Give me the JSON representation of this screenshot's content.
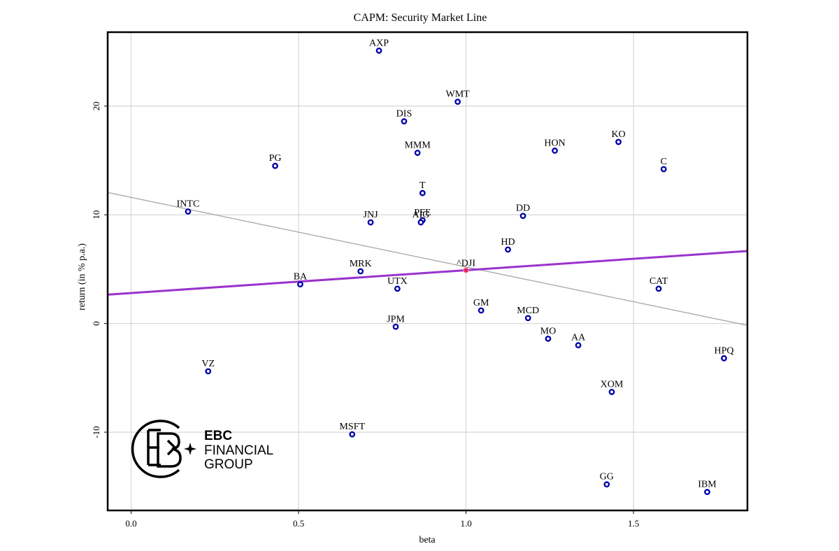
{
  "chart_data": {
    "type": "scatter",
    "title": "CAPM: Security Market Line",
    "xlabel": "beta",
    "ylabel": "return (in % p.a.)",
    "xlim": [
      -0.07,
      1.84
    ],
    "ylim": [
      -17.2,
      26.8
    ],
    "xticks": [
      0.0,
      0.5,
      1.0,
      1.5
    ],
    "xtick_labels": [
      "0.0",
      "0.5",
      "1.0",
      "1.5"
    ],
    "yticks": [
      -10,
      0,
      10,
      20
    ],
    "ytick_labels": [
      "-10",
      "0",
      "10",
      "20"
    ],
    "grid": true,
    "colors": {
      "points": "#0000aa",
      "market": "#e0245e",
      "sml": "#9933cc",
      "fit": "#aaaaaa",
      "grid": "#d9d9d9"
    },
    "security_market_line": {
      "intercept": 2.8,
      "slope": 2.1
    },
    "regression_line": {
      "intercept": 11.6,
      "slope": -6.4
    },
    "series": [
      {
        "points": [
          {
            "label": "AXP",
            "x": 0.74,
            "y": 25.1
          },
          {
            "label": "WMT",
            "x": 0.975,
            "y": 20.4
          },
          {
            "label": "DIS",
            "x": 0.815,
            "y": 18.6
          },
          {
            "label": "MMM",
            "x": 0.855,
            "y": 15.7
          },
          {
            "label": "HON",
            "x": 1.265,
            "y": 15.9
          },
          {
            "label": "KO",
            "x": 1.455,
            "y": 16.7
          },
          {
            "label": "PG",
            "x": 0.43,
            "y": 14.5
          },
          {
            "label": "C",
            "x": 1.59,
            "y": 14.2
          },
          {
            "label": "T",
            "x": 0.87,
            "y": 12.0
          },
          {
            "label": "INTC",
            "x": 0.17,
            "y": 10.3
          },
          {
            "label": "JNJ",
            "x": 0.715,
            "y": 9.3
          },
          {
            "label": "PFE",
            "x": 0.87,
            "y": 9.5
          },
          {
            "label": "AIG",
            "x": 0.865,
            "y": 9.3
          },
          {
            "label": "DD",
            "x": 1.17,
            "y": 9.9
          },
          {
            "label": "HD",
            "x": 1.125,
            "y": 6.8
          },
          {
            "label": "MRK",
            "x": 0.685,
            "y": 4.8
          },
          {
            "label": "BA",
            "x": 0.505,
            "y": 3.6
          },
          {
            "label": "UTX",
            "x": 0.795,
            "y": 3.2
          },
          {
            "label": "CAT",
            "x": 1.575,
            "y": 3.2
          },
          {
            "label": "GM",
            "x": 1.045,
            "y": 1.2
          },
          {
            "label": "MCD",
            "x": 1.185,
            "y": 0.5
          },
          {
            "label": "JPM",
            "x": 0.79,
            "y": -0.3
          },
          {
            "label": "MO",
            "x": 1.245,
            "y": -1.4
          },
          {
            "label": "AA",
            "x": 1.335,
            "y": -2.0
          },
          {
            "label": "HPQ",
            "x": 1.77,
            "y": -3.2
          },
          {
            "label": "VZ",
            "x": 0.23,
            "y": -4.4
          },
          {
            "label": "XOM",
            "x": 1.435,
            "y": -6.3
          },
          {
            "label": "MSFT",
            "x": 0.66,
            "y": -10.2
          },
          {
            "label": "GG",
            "x": 1.42,
            "y": -14.8
          },
          {
            "label": "IBM",
            "x": 1.72,
            "y": -15.5
          }
        ]
      }
    ],
    "market_point": {
      "label": "^DJI",
      "x": 1.0,
      "y": 4.9
    }
  },
  "logo": {
    "line1": "EBC",
    "line2": "FINANCIAL",
    "line3": "GROUP"
  }
}
